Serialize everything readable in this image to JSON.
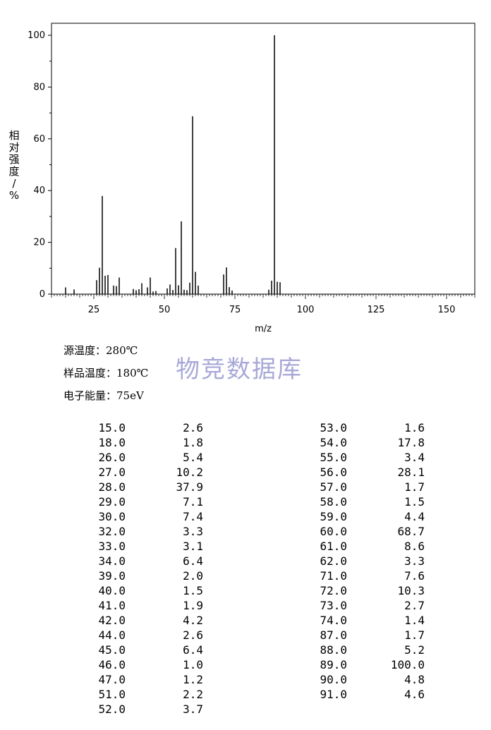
{
  "chart_data": {
    "type": "bar",
    "xlabel": "m/z",
    "ylabel": "相对强度/%",
    "xlim": [
      10,
      160
    ],
    "ylim": [
      0,
      100
    ],
    "xticks": [
      25,
      50,
      75,
      100,
      125,
      150
    ],
    "yticks": [
      0,
      20,
      40,
      60,
      80,
      100
    ],
    "x": [
      15,
      18,
      26,
      27,
      28,
      29,
      30,
      32,
      33,
      34,
      39,
      40,
      41,
      42,
      44,
      45,
      46,
      47,
      51,
      52,
      53,
      54,
      55,
      56,
      57,
      58,
      59,
      60,
      61,
      62,
      71,
      72,
      73,
      74,
      87,
      88,
      89,
      90,
      91
    ],
    "values": [
      2.6,
      1.8,
      5.4,
      10.2,
      37.9,
      7.1,
      7.4,
      3.3,
      3.1,
      6.4,
      2.0,
      1.5,
      1.9,
      4.2,
      2.6,
      6.4,
      1.0,
      1.2,
      2.2,
      3.7,
      1.6,
      17.8,
      3.4,
      28.1,
      1.7,
      1.5,
      4.4,
      68.7,
      8.6,
      3.3,
      7.6,
      10.3,
      2.7,
      1.4,
      1.7,
      5.2,
      100.0,
      4.8,
      4.6
    ]
  },
  "conditions": {
    "source_temp": "源温度：280℃",
    "sample_temp": "样品温度：180℃",
    "electron_energy": "电子能量：75eV"
  },
  "watermark": "物竞数据库",
  "peak_table": {
    "left": [
      [
        "15.0",
        "2.6"
      ],
      [
        "18.0",
        "1.8"
      ],
      [
        "26.0",
        "5.4"
      ],
      [
        "27.0",
        "10.2"
      ],
      [
        "28.0",
        "37.9"
      ],
      [
        "29.0",
        "7.1"
      ],
      [
        "30.0",
        "7.4"
      ],
      [
        "32.0",
        "3.3"
      ],
      [
        "33.0",
        "3.1"
      ],
      [
        "34.0",
        "6.4"
      ],
      [
        "39.0",
        "2.0"
      ],
      [
        "40.0",
        "1.5"
      ],
      [
        "41.0",
        "1.9"
      ],
      [
        "42.0",
        "4.2"
      ],
      [
        "44.0",
        "2.6"
      ],
      [
        "45.0",
        "6.4"
      ],
      [
        "46.0",
        "1.0"
      ],
      [
        "47.0",
        "1.2"
      ],
      [
        "51.0",
        "2.2"
      ],
      [
        "52.0",
        "3.7"
      ]
    ],
    "right": [
      [
        "53.0",
        "1.6"
      ],
      [
        "54.0",
        "17.8"
      ],
      [
        "55.0",
        "3.4"
      ],
      [
        "56.0",
        "28.1"
      ],
      [
        "57.0",
        "1.7"
      ],
      [
        "58.0",
        "1.5"
      ],
      [
        "59.0",
        "4.4"
      ],
      [
        "60.0",
        "68.7"
      ],
      [
        "61.0",
        "8.6"
      ],
      [
        "62.0",
        "3.3"
      ],
      [
        "71.0",
        "7.6"
      ],
      [
        "72.0",
        "10.3"
      ],
      [
        "73.0",
        "2.7"
      ],
      [
        "74.0",
        "1.4"
      ],
      [
        "87.0",
        "1.7"
      ],
      [
        "88.0",
        "5.2"
      ],
      [
        "89.0",
        "100.0"
      ],
      [
        "90.0",
        "4.8"
      ],
      [
        "91.0",
        "4.6"
      ]
    ]
  }
}
